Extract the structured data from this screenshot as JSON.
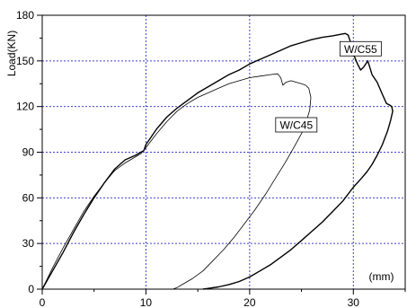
{
  "chart_data": {
    "type": "line",
    "title": "",
    "xlabel": "",
    "ylabel": "Load(KN)",
    "x_unit_note": "(mm)",
    "xlim": [
      0,
      35
    ],
    "ylim": [
      0,
      180
    ],
    "x_ticks": [
      0,
      10,
      20,
      30
    ],
    "y_ticks": [
      0,
      30,
      60,
      90,
      120,
      150,
      180
    ],
    "grid": true,
    "grid_color": "#4040d0",
    "line_color": "#000000",
    "legend": "none",
    "annotations": [
      {
        "text": "W/C55",
        "series": 0
      },
      {
        "text": "W/C45",
        "series": 1
      }
    ],
    "series": [
      {
        "x": [
          0,
          1,
          2,
          3,
          4,
          5,
          6,
          7,
          8,
          9,
          9.5,
          9.8,
          10,
          10.5,
          11,
          12,
          13,
          14,
          15,
          16,
          17,
          18,
          19,
          20,
          21,
          22,
          23,
          24,
          25,
          26,
          27,
          28,
          28.8,
          29.2,
          29.5,
          29.7,
          29.9,
          30.1,
          30.4,
          30.7,
          31.0,
          31.4,
          31.8,
          32.3,
          32.8,
          33.2,
          33.5,
          33.7,
          33.8,
          33.6,
          33.3,
          32.8,
          32.3,
          31.8,
          31.3,
          30.8,
          30.0,
          29.0,
          28.0,
          27.0,
          26.0,
          25.0,
          24.0,
          23.0,
          22.0,
          21.0,
          20.0,
          19.0,
          18.0,
          17.0,
          16.0,
          15.5
        ],
        "y": [
          0,
          12,
          24,
          37,
          49,
          60,
          70,
          79,
          85,
          88,
          90,
          91,
          95,
          100,
          105,
          113,
          119,
          124,
          129,
          133,
          137,
          141,
          144,
          148,
          151,
          154,
          157,
          160,
          162,
          164,
          165.5,
          166.5,
          167.5,
          168,
          167,
          163,
          158,
          153,
          148,
          144,
          146,
          150,
          141,
          136,
          128,
          122,
          121,
          120,
          117,
          111,
          104,
          95,
          88,
          82,
          77,
          73,
          67,
          58,
          51,
          44,
          38,
          32,
          26,
          21,
          16,
          12,
          8,
          5,
          3,
          1.5,
          0.5,
          0
        ]
      },
      {
        "x": [
          0,
          1,
          2,
          3,
          4,
          5,
          6,
          7,
          8,
          9,
          9.5,
          10,
          11,
          12,
          13,
          14,
          15,
          16,
          17,
          18,
          19,
          20,
          21,
          22,
          22.7,
          23.0,
          23.2,
          23.5,
          24.0,
          24.5,
          25.0,
          25.4,
          25.7,
          25.9,
          25.8,
          25.3,
          24.5,
          23.5,
          22.5,
          21.5,
          20.5,
          19.5,
          18.5,
          17.5,
          16.5,
          15.5,
          14.5,
          13.5,
          13.0,
          12.6
        ],
        "y": [
          0,
          14,
          27,
          39,
          51,
          61,
          70,
          78,
          83,
          87,
          89,
          93,
          102,
          110,
          117,
          122,
          126,
          129,
          132,
          135,
          137,
          139,
          140,
          141,
          141.5,
          139,
          134,
          136,
          137,
          136,
          135,
          134,
          132,
          126,
          118,
          106,
          96,
          84,
          73,
          62,
          52,
          43,
          34,
          26,
          19,
          12,
          7,
          3,
          1,
          0
        ]
      }
    ]
  }
}
